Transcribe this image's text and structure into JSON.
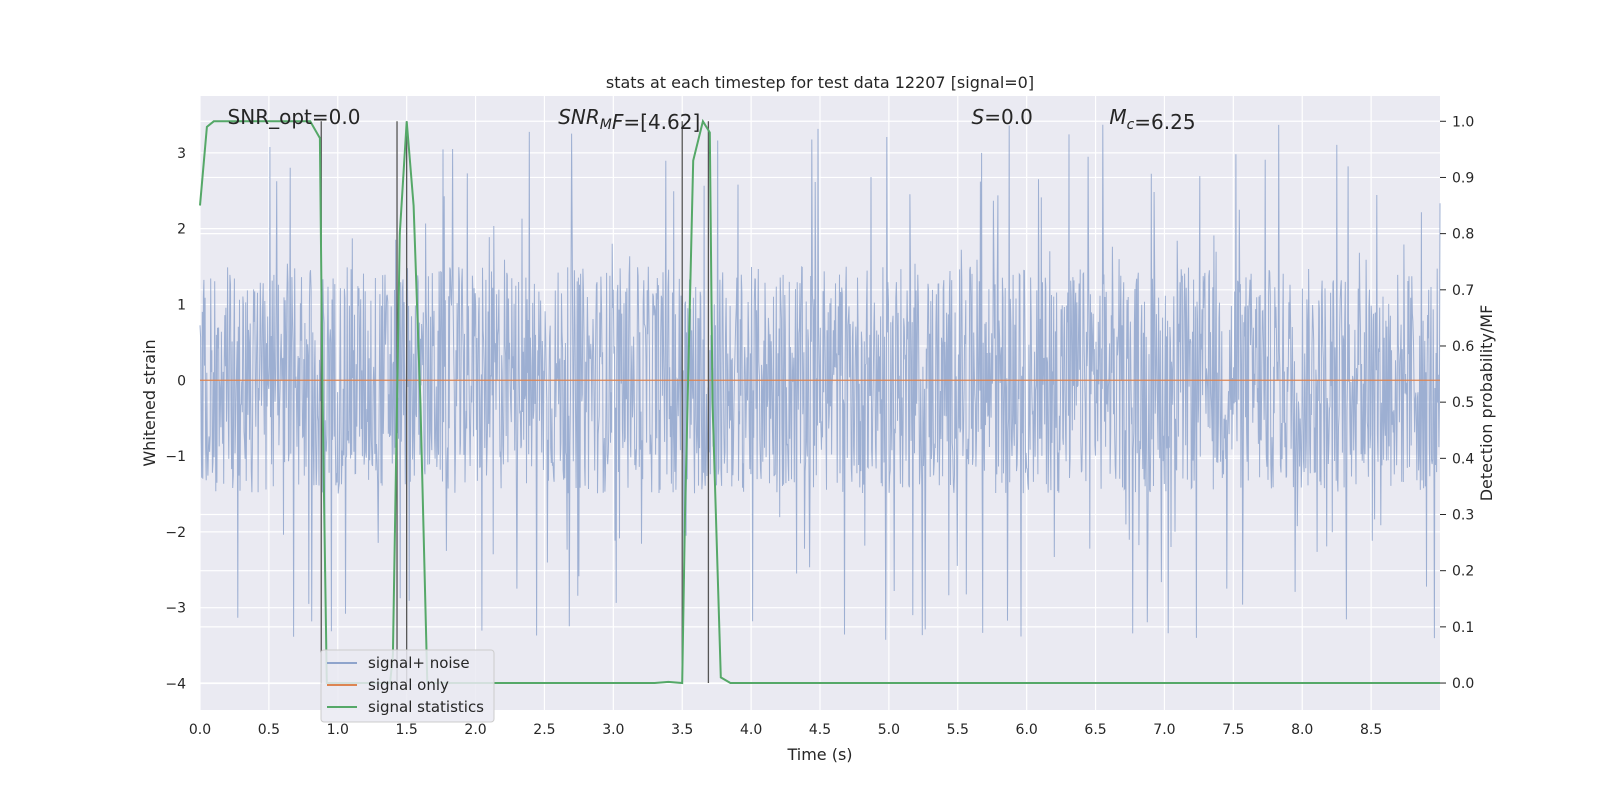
{
  "chart_data": {
    "type": "line",
    "title": "stats at each timestep for test data 12207 [signal=0]",
    "xlabel": "Time (s)",
    "ylabel": "Whitened strain",
    "ylabel_right": "Detection probability/MF",
    "xlim": [
      0.0,
      9.0
    ],
    "ylim": [
      -4.35,
      3.75
    ],
    "ylim_right": [
      -0.048,
      1.045
    ],
    "x_ticks": [
      "0.0",
      "0.5",
      "1.0",
      "1.5",
      "2.0",
      "2.5",
      "3.0",
      "3.5",
      "4.0",
      "4.5",
      "5.0",
      "5.5",
      "6.0",
      "6.5",
      "7.0",
      "7.5",
      "8.0",
      "8.5"
    ],
    "y_ticks": [
      "−4",
      "−3",
      "−2",
      "−1",
      "0",
      "1",
      "2",
      "3"
    ],
    "y_ticks_right": [
      "0.0",
      "0.1",
      "0.2",
      "0.3",
      "0.4",
      "0.5",
      "0.6",
      "0.7",
      "0.8",
      "0.9",
      "1.0"
    ],
    "grid": true,
    "legend_position": "lower-left",
    "series": [
      {
        "name": "signal+ noise",
        "color": "#8fa4cc",
        "kind": "noise",
        "band": [
          -1.8,
          1.5
        ],
        "peak": [
          -4.0,
          3.4
        ]
      },
      {
        "name": "signal only",
        "color": "#dd8452",
        "kind": "flat",
        "value": 0.0
      },
      {
        "name": "signal statistics",
        "color": "#55a868",
        "axis": "right",
        "x": [
          0.0,
          0.05,
          0.1,
          0.2,
          0.3,
          0.4,
          0.5,
          0.6,
          0.7,
          0.8,
          0.87,
          0.89,
          0.92,
          0.95,
          1.0,
          1.2,
          1.38,
          1.4,
          1.45,
          1.5,
          1.55,
          1.6,
          1.65,
          1.7,
          2.0,
          2.5,
          3.0,
          3.3,
          3.4,
          3.5,
          3.52,
          3.58,
          3.65,
          3.7,
          3.72,
          3.78,
          3.85,
          4.0,
          5.0,
          6.0,
          7.0,
          8.0,
          8.5,
          9.0
        ],
        "y": [
          0.85,
          0.99,
          1.0,
          1.0,
          1.0,
          1.0,
          1.0,
          1.0,
          1.0,
          1.0,
          0.97,
          0.5,
          0.0,
          0.0,
          0.0,
          0.0,
          0.0,
          0.05,
          0.8,
          1.0,
          0.85,
          0.5,
          0.0,
          0.0,
          0.0,
          0.0,
          0.0,
          0.0,
          0.002,
          0.0,
          0.3,
          0.93,
          1.0,
          0.98,
          0.5,
          0.01,
          0.0,
          0.0,
          0.0,
          0.0,
          0.0,
          0.0,
          0.0,
          0.0
        ]
      }
    ],
    "vlines": [
      0.88,
      1.43,
      1.5,
      3.5,
      3.69
    ],
    "annotations": [
      {
        "label": "SNR_opt=0.0",
        "x": 0.2
      },
      {
        "label": "SNR_MF=[4.62]",
        "x": 2.6
      },
      {
        "label": "S=0.0",
        "x": 5.6
      },
      {
        "label": "M_c=6.25",
        "x": 6.6
      }
    ]
  }
}
